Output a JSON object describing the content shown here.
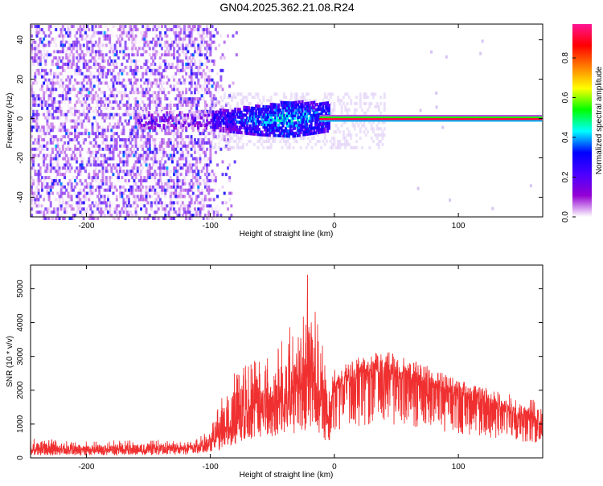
{
  "title": "GN04.2025.362.21.08.R24",
  "chart_data": [
    {
      "type": "heatmap",
      "xlabel": "Height of straight line (km)",
      "ylabel": "Frequency (Hz)",
      "xlim": [
        -245,
        168
      ],
      "ylim": [
        -50,
        48
      ],
      "x_ticks": [
        -200,
        -100,
        0,
        100
      ],
      "y_ticks": [
        -40,
        -20,
        0,
        20,
        40
      ],
      "colorbar": {
        "label": "Normalized spectral amplitude",
        "ticks": [
          0.0,
          0.2,
          0.4,
          0.6,
          0.8
        ],
        "range": [
          0,
          0.97
        ],
        "colormap": [
          "#ffffff",
          "#9400d3",
          "#4b00ff",
          "#0000ff",
          "#00ffff",
          "#00ff00",
          "#ffff00",
          "#ff7f00",
          "#ff0000",
          "#ff1493"
        ]
      },
      "regions": [
        {
          "x": [
            -245,
            -80
          ],
          "freq_spread": 48,
          "amplitude": 0.12,
          "description_level": "broadband noise"
        },
        {
          "x": [
            -100,
            -10
          ],
          "freq_spread": 8,
          "amplitude": 0.35
        },
        {
          "x": [
            0,
            168
          ],
          "freq_spread": 1,
          "amplitude": 0.9
        }
      ]
    },
    {
      "type": "line",
      "xlabel": "Height of straight line (km)",
      "ylabel": "SNR (10 * v/v)",
      "xlim": [
        -245,
        168
      ],
      "ylim": [
        0,
        5700
      ],
      "x_ticks": [
        -200,
        -100,
        0,
        100
      ],
      "y_ticks": [
        0,
        1000,
        2000,
        3000,
        4000,
        5000
      ],
      "color": "#f03030",
      "envelope": {
        "x": [
          -245,
          -200,
          -150,
          -120,
          -100,
          -85,
          -70,
          -55,
          -40,
          -30,
          -22,
          -18,
          -12,
          -5,
          0,
          10,
          25,
          40,
          55,
          75,
          100,
          130,
          150,
          168
        ],
        "mean": [
          200,
          200,
          210,
          260,
          350,
          800,
          1300,
          1400,
          1500,
          1800,
          2000,
          2100,
          1600,
          1100,
          1900,
          2200,
          2400,
          2450,
          2300,
          2100,
          1800,
          1400,
          1200,
          1000
        ],
        "peak": [
          600,
          500,
          550,
          500,
          800,
          2600,
          3100,
          2900,
          4200,
          3600,
          5500,
          5600,
          3800,
          2800,
          2600,
          2900,
          3000,
          3100,
          2900,
          2700,
          2300,
          2000,
          1800,
          1700
        ]
      }
    }
  ]
}
